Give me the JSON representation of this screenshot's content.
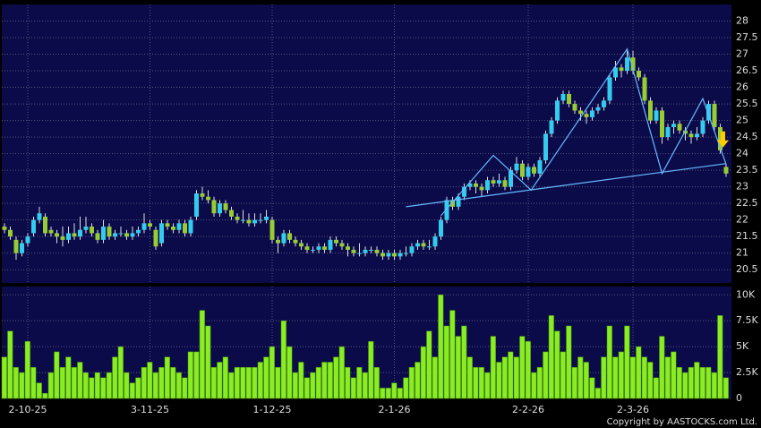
{
  "chart_data": [
    {
      "type": "candlestick",
      "categories": [
        null,
        null,
        null,
        null,
        "2-10-25",
        null,
        null,
        null,
        null,
        null,
        null,
        null,
        null,
        null,
        null,
        null,
        null,
        null,
        null,
        null,
        null,
        null,
        null,
        null,
        null,
        "3-11-25",
        null,
        null,
        null,
        null,
        null,
        null,
        null,
        null,
        null,
        null,
        null,
        null,
        null,
        null,
        null,
        null,
        null,
        null,
        null,
        null,
        "1-12-25",
        null,
        null,
        null,
        null,
        null,
        null,
        null,
        null,
        null,
        null,
        null,
        null,
        null,
        null,
        null,
        null,
        null,
        null,
        null,
        null,
        "2-1-26",
        null,
        null,
        null,
        null,
        null,
        null,
        null,
        null,
        null,
        null,
        null,
        null,
        null,
        null,
        null,
        null,
        null,
        null,
        null,
        null,
        null,
        null,
        "2-2-26",
        null,
        null,
        null,
        null,
        null,
        null,
        null,
        null,
        null,
        null,
        null,
        null,
        null,
        null,
        null,
        null,
        null,
        "2-3-26",
        null,
        null,
        null,
        null,
        null,
        null,
        null,
        null,
        null,
        null,
        null,
        null,
        null,
        null,
        null,
        null
      ],
      "ohlc": [
        [
          21.8,
          21.9,
          21.6,
          21.7
        ],
        [
          21.7,
          21.8,
          21.4,
          21.5
        ],
        [
          21.4,
          21.5,
          20.8,
          21.0
        ],
        [
          21.0,
          21.4,
          20.9,
          21.3
        ],
        [
          21.3,
          21.6,
          21.2,
          21.5
        ],
        [
          21.6,
          22.1,
          21.5,
          22.0
        ],
        [
          22.0,
          22.4,
          21.9,
          22.2
        ],
        [
          22.1,
          22.2,
          21.5,
          21.6
        ],
        [
          21.7,
          21.8,
          21.5,
          21.6
        ],
        [
          21.6,
          21.7,
          21.3,
          21.5
        ],
        [
          21.5,
          21.8,
          21.2,
          21.4
        ],
        [
          21.4,
          21.8,
          21.3,
          21.6
        ],
        [
          21.6,
          21.9,
          21.4,
          21.5
        ],
        [
          21.5,
          22.1,
          21.4,
          21.7
        ],
        [
          21.7,
          22.1,
          21.6,
          21.8
        ],
        [
          21.8,
          21.9,
          21.5,
          21.6
        ],
        [
          21.6,
          21.7,
          21.3,
          21.4
        ],
        [
          21.4,
          22.0,
          21.3,
          21.8
        ],
        [
          21.8,
          21.9,
          21.4,
          21.5
        ],
        [
          21.5,
          21.7,
          21.4,
          21.6
        ],
        [
          21.6,
          21.8,
          21.5,
          21.6
        ],
        [
          21.6,
          21.7,
          21.4,
          21.5
        ],
        [
          21.5,
          21.8,
          21.4,
          21.6
        ],
        [
          21.6,
          21.8,
          21.5,
          21.7
        ],
        [
          21.7,
          22.2,
          21.6,
          21.9
        ],
        [
          21.9,
          22.0,
          21.7,
          21.8
        ],
        [
          21.7,
          21.8,
          21.1,
          21.2
        ],
        [
          21.3,
          22.0,
          21.2,
          21.9
        ],
        [
          21.9,
          22.0,
          21.7,
          21.8
        ],
        [
          21.8,
          21.9,
          21.6,
          21.7
        ],
        [
          21.7,
          22.0,
          21.6,
          21.9
        ],
        [
          21.9,
          22.0,
          21.5,
          21.6
        ],
        [
          21.6,
          22.1,
          21.5,
          22.0
        ],
        [
          22.1,
          22.9,
          22.0,
          22.8
        ],
        [
          22.8,
          23.0,
          22.6,
          22.7
        ],
        [
          22.7,
          22.9,
          22.5,
          22.6
        ],
        [
          22.6,
          22.7,
          22.1,
          22.2
        ],
        [
          22.2,
          22.6,
          22.1,
          22.5
        ],
        [
          22.5,
          22.6,
          22.2,
          22.3
        ],
        [
          22.3,
          22.4,
          22.0,
          22.1
        ],
        [
          22.1,
          22.2,
          21.9,
          22.0
        ],
        [
          22.0,
          22.3,
          21.9,
          22.0
        ],
        [
          22.0,
          22.2,
          21.8,
          21.9
        ],
        [
          21.9,
          22.2,
          21.8,
          22.0
        ],
        [
          22.0,
          22.2,
          21.9,
          22.0
        ],
        [
          22.0,
          22.3,
          21.9,
          22.1
        ],
        [
          22.0,
          22.1,
          21.3,
          21.4
        ],
        [
          21.4,
          21.5,
          21.0,
          21.3
        ],
        [
          21.3,
          21.7,
          21.2,
          21.6
        ],
        [
          21.6,
          21.7,
          21.3,
          21.4
        ],
        [
          21.4,
          21.5,
          21.2,
          21.3
        ],
        [
          21.3,
          21.4,
          21.1,
          21.2
        ],
        [
          21.2,
          21.3,
          21.0,
          21.1
        ],
        [
          21.1,
          21.2,
          21.0,
          21.1
        ],
        [
          21.1,
          21.3,
          21.0,
          21.2
        ],
        [
          21.2,
          21.3,
          21.0,
          21.1
        ],
        [
          21.1,
          21.5,
          21.0,
          21.4
        ],
        [
          21.4,
          21.5,
          21.2,
          21.3
        ],
        [
          21.3,
          21.4,
          21.1,
          21.2
        ],
        [
          21.2,
          21.3,
          20.9,
          21.1
        ],
        [
          21.1,
          21.2,
          20.9,
          21.0
        ],
        [
          21.0,
          21.3,
          20.9,
          21.0
        ],
        [
          21.0,
          21.2,
          20.9,
          21.1
        ],
        [
          21.1,
          21.2,
          21.0,
          21.1
        ],
        [
          21.1,
          21.2,
          20.9,
          21.0
        ],
        [
          21.0,
          21.1,
          20.8,
          20.9
        ],
        [
          20.9,
          21.1,
          20.8,
          21.0
        ],
        [
          21.0,
          21.1,
          20.8,
          20.9
        ],
        [
          20.9,
          21.1,
          20.8,
          21.0
        ],
        [
          21.0,
          21.2,
          20.9,
          21.0
        ],
        [
          21.0,
          21.3,
          20.9,
          21.2
        ],
        [
          21.2,
          21.4,
          21.1,
          21.3
        ],
        [
          21.3,
          21.4,
          21.1,
          21.2
        ],
        [
          21.2,
          21.4,
          21.1,
          21.2
        ],
        [
          21.2,
          21.6,
          21.1,
          21.5
        ],
        [
          21.5,
          22.1,
          21.4,
          22.0
        ],
        [
          22.0,
          22.7,
          21.9,
          22.6
        ],
        [
          22.6,
          22.7,
          22.3,
          22.4
        ],
        [
          22.4,
          22.8,
          22.3,
          22.7
        ],
        [
          22.7,
          23.1,
          22.6,
          23.0
        ],
        [
          23.0,
          23.2,
          22.9,
          23.1
        ],
        [
          23.1,
          23.2,
          22.8,
          23.0
        ],
        [
          23.0,
          23.1,
          22.7,
          22.9
        ],
        [
          22.9,
          23.3,
          22.8,
          23.2
        ],
        [
          23.2,
          23.3,
          23.0,
          23.1
        ],
        [
          23.1,
          23.4,
          23.0,
          23.2
        ],
        [
          23.2,
          23.3,
          22.9,
          23.0
        ],
        [
          23.0,
          23.6,
          22.9,
          23.5
        ],
        [
          23.5,
          23.9,
          23.4,
          23.7
        ],
        [
          23.7,
          23.8,
          23.2,
          23.3
        ],
        [
          23.3,
          23.7,
          23.2,
          23.6
        ],
        [
          23.6,
          23.7,
          23.3,
          23.4
        ],
        [
          23.4,
          23.9,
          23.3,
          23.8
        ],
        [
          23.8,
          24.7,
          23.7,
          24.6
        ],
        [
          24.6,
          25.1,
          24.5,
          25.0
        ],
        [
          25.0,
          25.7,
          24.9,
          25.6
        ],
        [
          25.6,
          25.9,
          25.5,
          25.8
        ],
        [
          25.8,
          25.9,
          25.4,
          25.5
        ],
        [
          25.5,
          25.6,
          25.2,
          25.3
        ],
        [
          25.3,
          25.4,
          25.0,
          25.2
        ],
        [
          25.2,
          25.3,
          24.9,
          25.1
        ],
        [
          25.1,
          25.4,
          25.0,
          25.3
        ],
        [
          25.3,
          25.5,
          25.2,
          25.4
        ],
        [
          25.4,
          25.7,
          25.3,
          25.6
        ],
        [
          25.6,
          26.4,
          25.5,
          26.3
        ],
        [
          26.3,
          26.8,
          26.2,
          26.6
        ],
        [
          26.6,
          26.7,
          26.3,
          26.5
        ],
        [
          26.5,
          27.1,
          26.4,
          26.9
        ],
        [
          26.9,
          27.1,
          26.4,
          26.5
        ],
        [
          26.5,
          26.6,
          26.2,
          26.3
        ],
        [
          26.3,
          26.4,
          25.5,
          25.6
        ],
        [
          25.6,
          25.7,
          24.9,
          25.0
        ],
        [
          25.0,
          25.4,
          24.9,
          25.3
        ],
        [
          25.3,
          25.4,
          24.3,
          24.5
        ],
        [
          24.5,
          24.9,
          24.4,
          24.8
        ],
        [
          24.8,
          25.0,
          24.6,
          24.9
        ],
        [
          24.9,
          25.0,
          24.6,
          24.7
        ],
        [
          24.7,
          24.8,
          24.4,
          24.6
        ],
        [
          24.6,
          24.7,
          24.3,
          24.5
        ],
        [
          24.5,
          24.8,
          24.4,
          24.6
        ],
        [
          24.6,
          25.1,
          24.5,
          25.0
        ],
        [
          25.0,
          25.6,
          24.9,
          25.5
        ],
        [
          25.5,
          25.6,
          24.7,
          24.8
        ],
        [
          24.8,
          24.9,
          24.0,
          24.1
        ],
        [
          23.6,
          23.7,
          23.3,
          23.4
        ]
      ],
      "up_color": "#33ccee",
      "down_color": "#99cc33",
      "ylim": [
        20.1,
        28.5
      ],
      "yticks": [
        20.5,
        21,
        21.5,
        22,
        22.5,
        23,
        23.5,
        24,
        24.5,
        25,
        25.5,
        26,
        26.5,
        27,
        27.5,
        28
      ],
      "grid": true,
      "trendlines": [
        {
          "color": "#66bbff",
          "points": [
            [
              69,
              22.4
            ],
            [
              124,
              23.7
            ]
          ]
        },
        {
          "color": "#66bbff",
          "points": [
            [
              75,
              22.13
            ],
            [
              84,
              23.95
            ],
            [
              90.5,
              22.9
            ],
            [
              107,
              27.16
            ],
            [
              113,
              23.4
            ],
            [
              120,
              25.66
            ],
            [
              124,
              23.68
            ]
          ]
        }
      ]
    },
    {
      "type": "bar",
      "values": [
        4000,
        6500,
        3000,
        2500,
        5500,
        3000,
        1500,
        500,
        2500,
        4500,
        3000,
        4000,
        3000,
        3500,
        2500,
        2000,
        2500,
        2000,
        2500,
        4000,
        5000,
        2500,
        1500,
        2000,
        3000,
        3500,
        2500,
        3000,
        4000,
        3000,
        2500,
        2000,
        4500,
        4500,
        8500,
        7000,
        3000,
        3500,
        4000,
        2500,
        3000,
        3000,
        3000,
        3000,
        3500,
        4000,
        5000,
        3000,
        7500,
        5000,
        2500,
        3500,
        2000,
        2500,
        3000,
        3500,
        3500,
        4000,
        5000,
        3000,
        2000,
        3000,
        2500,
        5500,
        3000,
        1000,
        1000,
        1500,
        1000,
        2000,
        3000,
        3500,
        5000,
        6500,
        4000,
        10000,
        7000,
        8500,
        6000,
        7000,
        4000,
        3000,
        3000,
        2500,
        6000,
        3500,
        4000,
        4500,
        4000,
        6000,
        5500,
        2500,
        3000,
        4500,
        8000,
        6500,
        4500,
        7000,
        3000,
        4000,
        3500,
        2000,
        1000,
        4000,
        7000,
        4000,
        4500,
        7000,
        4000,
        5000,
        4000,
        3500,
        2000,
        6000,
        4000,
        4500,
        3000,
        2500,
        3000,
        3500,
        3000,
        3000,
        2500,
        8000,
        2000
      ],
      "color": "#88ee22",
      "ylim": [
        0,
        10800
      ],
      "yticks": [
        0,
        {
          "value": 2500,
          "label": "2.5K"
        },
        {
          "value": 5000,
          "label": "5K"
        },
        {
          "value": 7500,
          "label": "7.5K"
        },
        {
          "value": 10000,
          "label": "10K"
        }
      ],
      "grid": true
    }
  ],
  "copyright": "Copyright by AASTOCKS.com Ltd."
}
